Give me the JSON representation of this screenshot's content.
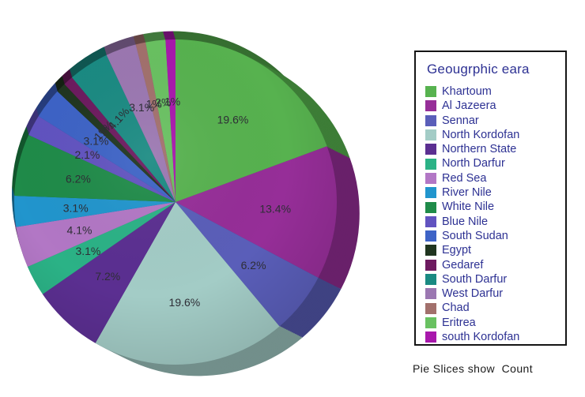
{
  "chart_data": {
    "type": "pie",
    "style": "3d-exploded-none",
    "legend_title": "Geougrphic eara",
    "footnote": "Pie Slices show  Count",
    "legend_position": "right",
    "start_angle_deg": 0,
    "direction": "clockwise",
    "slices": [
      {
        "label": "Khartoum",
        "pct": 19.6,
        "pct_label": "19.6%",
        "color": "#57b24f"
      },
      {
        "label": "Al Jazeera",
        "pct": 13.4,
        "pct_label": "13.4%",
        "color": "#962e98"
      },
      {
        "label": "Sennar",
        "pct": 6.2,
        "pct_label": "6.2%",
        "color": "#5a5eb9"
      },
      {
        "label": "North Kordofan",
        "pct": 19.6,
        "pct_label": "19.6%",
        "color": "#a3ccc6"
      },
      {
        "label": "Northern State",
        "pct": 7.2,
        "pct_label": "7.2%",
        "color": "#5b2f91"
      },
      {
        "label": "North Darfur",
        "pct": 3.1,
        "pct_label": "3.1%",
        "color": "#2bb286"
      },
      {
        "label": "Red Sea",
        "pct": 4.1,
        "pct_label": "4.1%",
        "color": "#b277c5"
      },
      {
        "label": "River Nile",
        "pct": 3.1,
        "pct_label": "3.1%",
        "color": "#2195cd"
      },
      {
        "label": "White Nile",
        "pct": 6.2,
        "pct_label": "6.2%",
        "color": "#1f8b49"
      },
      {
        "label": "Blue Nile",
        "pct": 2.1,
        "pct_label": "2.1%",
        "color": "#6153c0"
      },
      {
        "label": "South Sudan",
        "pct": 3.1,
        "pct_label": "3.1%",
        "color": "#3d63c6"
      },
      {
        "label": "Egypt",
        "pct": 1.0,
        "pct_label": "1%",
        "color": "#20351f"
      },
      {
        "label": "Gedaref",
        "pct": 1.0,
        "pct_label": "1%",
        "color": "#6d1a5f"
      },
      {
        "label": "South Darfur",
        "pct": 4.1,
        "pct_label": "4.1%",
        "color": "#1a8a82"
      },
      {
        "label": "West Darfur",
        "pct": 3.1,
        "pct_label": "3.1%",
        "color": "#9b77b1"
      },
      {
        "label": "Chad",
        "pct": 1.0,
        "pct_label": "1%",
        "color": "#a2706c"
      },
      {
        "label": "Eritrea",
        "pct": 2.0,
        "pct_label": "2%",
        "color": "#69c161"
      },
      {
        "label": "south Kordofan",
        "pct": 1.0,
        "pct_label": "1%",
        "color": "#a818ac"
      }
    ],
    "rotated_labels": [
      "Egypt",
      "Gedaref",
      "South Darfur"
    ]
  }
}
